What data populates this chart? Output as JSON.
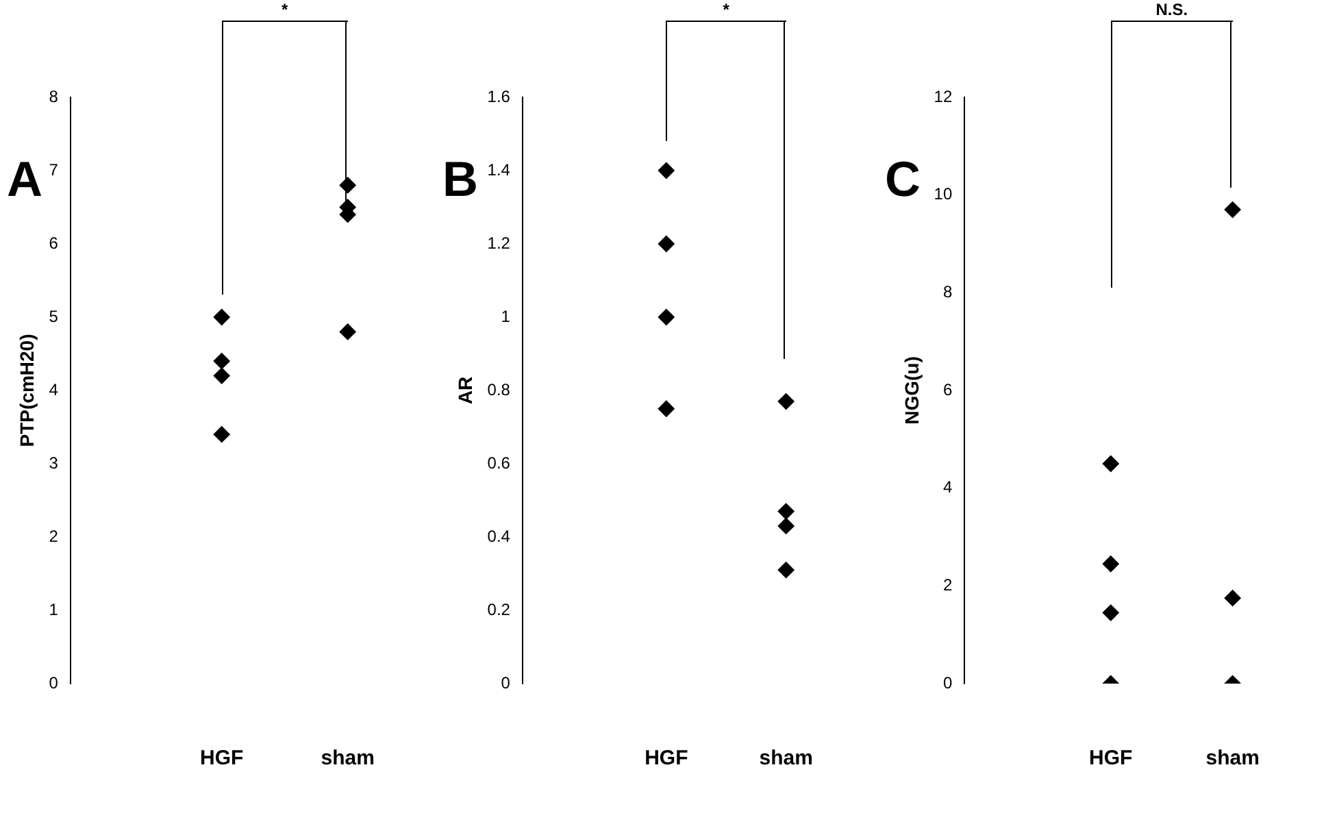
{
  "chart_data": [
    {
      "type": "scatter",
      "ylabel": "PTP(cmH20)",
      "categories": [
        "HGF",
        "sham"
      ],
      "ylim": [
        0,
        8
      ],
      "yticks": [
        0,
        1,
        2,
        3,
        4,
        5,
        6,
        7,
        8
      ],
      "grid": false,
      "legend": false,
      "marker": "diamond",
      "annotations": [
        "A",
        "*"
      ],
      "series": [
        {
          "color": "#000000",
          "x": [
            "HGF",
            "HGF",
            "HGF",
            "HGF",
            "sham",
            "sham",
            "sham",
            "sham"
          ],
          "values": [
            5.0,
            4.4,
            4.2,
            3.4,
            6.8,
            6.5,
            6.4,
            4.8
          ]
        }
      ]
    },
    {
      "type": "scatter",
      "ylabel": "AR",
      "categories": [
        "HGF",
        "sham"
      ],
      "ylim": [
        0,
        1.6
      ],
      "yticks": [
        0,
        0.2,
        0.4,
        0.6,
        0.8,
        1,
        1.2,
        1.4,
        1.6
      ],
      "grid": false,
      "legend": false,
      "marker": "diamond",
      "annotations": [
        "B",
        "*"
      ],
      "series": [
        {
          "color": "#000000",
          "x": [
            "HGF",
            "HGF",
            "HGF",
            "HGF",
            "sham",
            "sham",
            "sham",
            "sham"
          ],
          "values": [
            1.4,
            1.2,
            1.0,
            0.75,
            0.77,
            0.47,
            0.43,
            0.31
          ]
        }
      ]
    },
    {
      "type": "scatter",
      "ylabel": "NGG(u)",
      "categories": [
        "HGF",
        "sham"
      ],
      "ylim": [
        0,
        12
      ],
      "yticks": [
        0,
        2,
        4,
        6,
        8,
        10,
        12
      ],
      "grid": false,
      "legend": false,
      "marker": "diamond",
      "annotations": [
        "C",
        "N.S."
      ],
      "series": [
        {
          "color": "#000000",
          "x": [
            "HGF",
            "HGF",
            "HGF",
            "HGF",
            "sham",
            "sham",
            "sham"
          ],
          "values": [
            4.5,
            2.45,
            1.45,
            0,
            9.7,
            1.75,
            0
          ]
        }
      ]
    }
  ]
}
